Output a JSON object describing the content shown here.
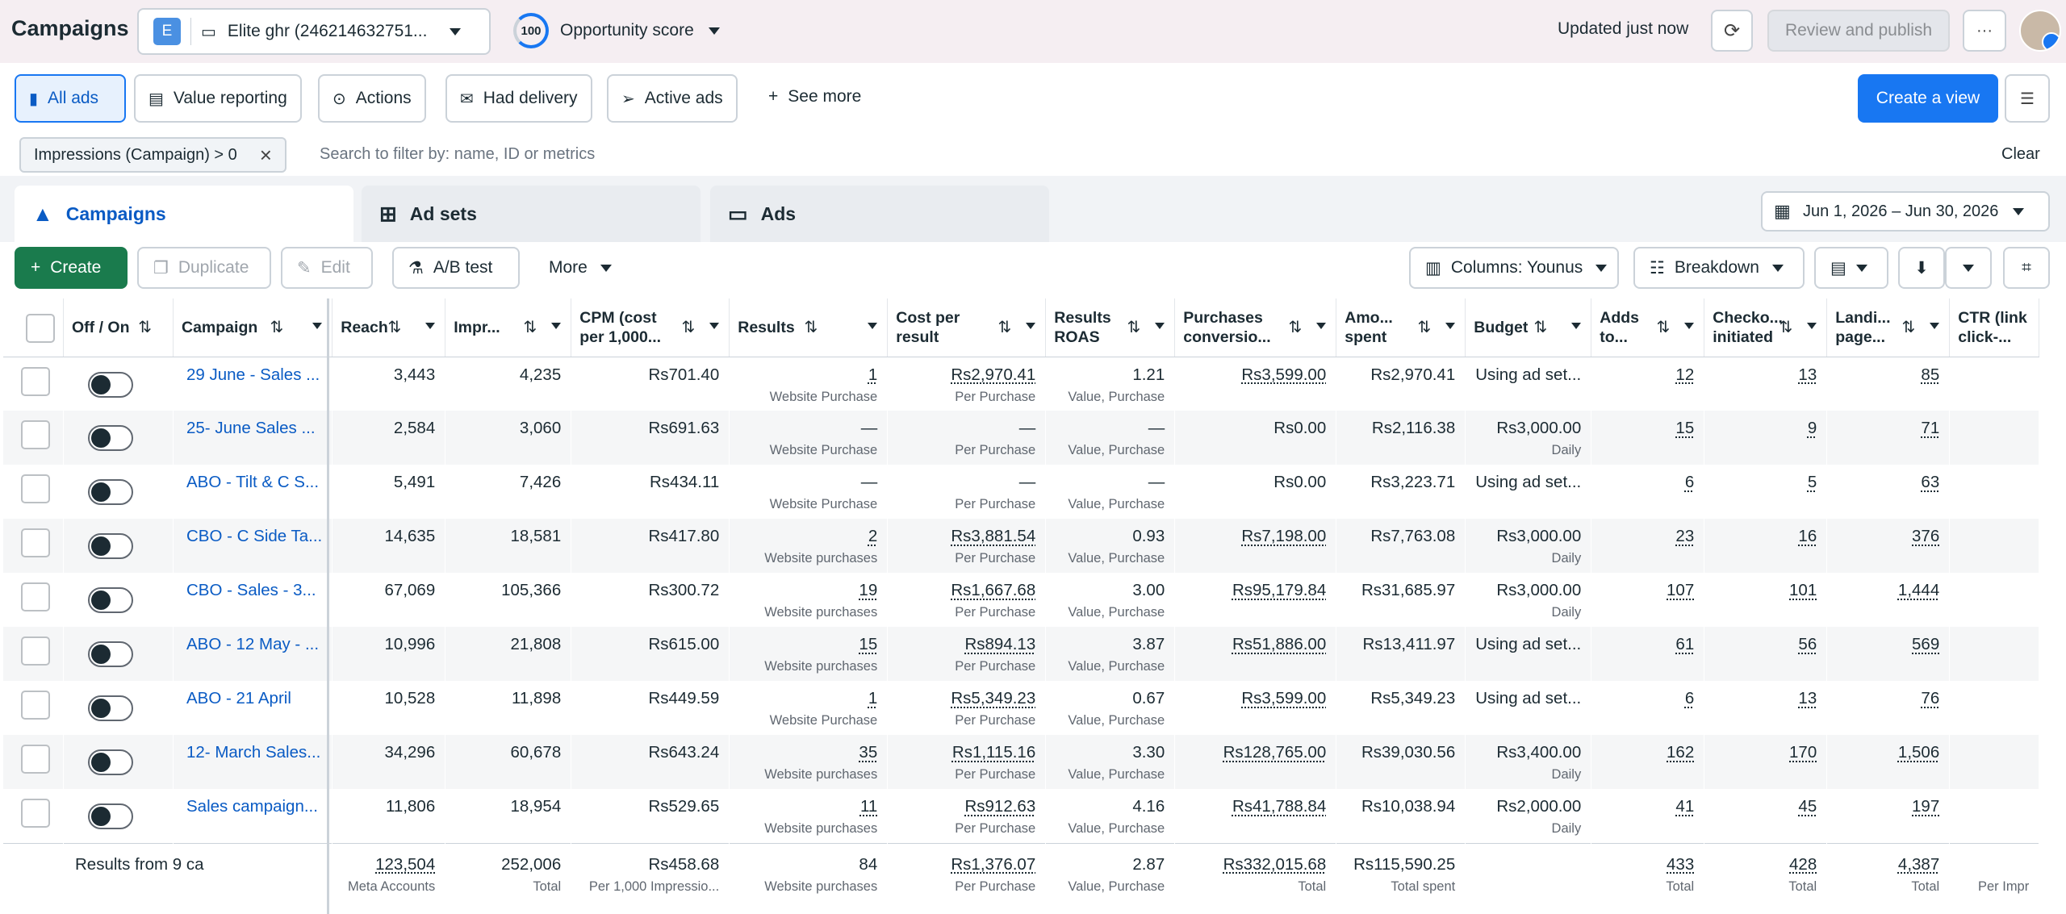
{
  "header": {
    "title": "Campaigns",
    "account_badge": "E",
    "account_name": "Elite ghr (246214632751...",
    "opportunity_score": "100",
    "opportunity_label": "Opportunity score",
    "updated": "Updated just now",
    "review_publish": "Review and publish",
    "more": "···"
  },
  "views": {
    "items": [
      "All ads",
      "Value reporting",
      "Actions",
      "Had delivery",
      "Active ads"
    ],
    "see_more": "See more",
    "create_view": "Create a view"
  },
  "filter": {
    "chip": "Impressions (Campaign) > 0",
    "placeholder": "Search to filter by: name, ID or metrics",
    "clear": "Clear"
  },
  "tabs": [
    "Campaigns",
    "Ad sets",
    "Ads"
  ],
  "date_range": "Jun 1, 2026 – Jun 30, 2026",
  "toolbar": {
    "create": "Create",
    "duplicate": "Duplicate",
    "edit": "Edit",
    "ab_test": "A/B test",
    "more": "More",
    "columns": "Columns: Younus",
    "breakdown": "Breakdown"
  },
  "columns": [
    "Off / On",
    "Campaign",
    "Reach",
    "Impr...",
    "CPM (cost per 1,000...",
    "Results",
    "Cost per result",
    "Results ROAS",
    "Purchases conversio...",
    "Amo... spent",
    "Budget",
    "Adds to...",
    "Checko... initiated",
    "Landi... page...",
    "CTR (link click-..."
  ],
  "rows": [
    {
      "name": "29 June - Sales ...",
      "reach": "3,443",
      "impr": "4,235",
      "cpm": "Rs701.40",
      "results": "1",
      "results_sub": "Website Purchase",
      "cpr": "Rs2,970.41",
      "cpr_sub": "Per Purchase",
      "roas": "1.21",
      "roas_sub": "Value, Purchase",
      "pcv": "Rs3,599.00",
      "spent": "Rs2,970.41",
      "budget": "Using ad set...",
      "budget_sub": "",
      "adds": "12",
      "checko": "13",
      "landing": "85"
    },
    {
      "name": "25- June Sales ...",
      "reach": "2,584",
      "impr": "3,060",
      "cpm": "Rs691.63",
      "results": "—",
      "results_sub": "Website Purchase",
      "cpr": "—",
      "cpr_sub": "Per Purchase",
      "roas": "—",
      "roas_sub": "Value, Purchase",
      "pcv": "Rs0.00",
      "spent": "Rs2,116.38",
      "budget": "Rs3,000.00",
      "budget_sub": "Daily",
      "adds": "15",
      "checko": "9",
      "landing": "71"
    },
    {
      "name": "ABO - Tilt & C S...",
      "reach": "5,491",
      "impr": "7,426",
      "cpm": "Rs434.11",
      "results": "—",
      "results_sub": "Website Purchase",
      "cpr": "—",
      "cpr_sub": "Per Purchase",
      "roas": "—",
      "roas_sub": "Value, Purchase",
      "pcv": "Rs0.00",
      "spent": "Rs3,223.71",
      "budget": "Using ad set...",
      "budget_sub": "",
      "adds": "6",
      "checko": "5",
      "landing": "63"
    },
    {
      "name": "CBO - C Side Ta...",
      "reach": "14,635",
      "impr": "18,581",
      "cpm": "Rs417.80",
      "results": "2",
      "results_sub": "Website purchases",
      "cpr": "Rs3,881.54",
      "cpr_sub": "Per Purchase",
      "roas": "0.93",
      "roas_sub": "Value, Purchase",
      "pcv": "Rs7,198.00",
      "spent": "Rs7,763.08",
      "budget": "Rs3,000.00",
      "budget_sub": "Daily",
      "adds": "23",
      "checko": "16",
      "landing": "376"
    },
    {
      "name": "CBO - Sales - 3...",
      "reach": "67,069",
      "impr": "105,366",
      "cpm": "Rs300.72",
      "results": "19",
      "results_sub": "Website purchases",
      "cpr": "Rs1,667.68",
      "cpr_sub": "Per Purchase",
      "roas": "3.00",
      "roas_sub": "Value, Purchase",
      "pcv": "Rs95,179.84",
      "spent": "Rs31,685.97",
      "budget": "Rs3,000.00",
      "budget_sub": "Daily",
      "adds": "107",
      "checko": "101",
      "landing": "1,444"
    },
    {
      "name": "ABO - 12 May - ...",
      "reach": "10,996",
      "impr": "21,808",
      "cpm": "Rs615.00",
      "results": "15",
      "results_sub": "Website purchases",
      "cpr": "Rs894.13",
      "cpr_sub": "Per Purchase",
      "roas": "3.87",
      "roas_sub": "Value, Purchase",
      "pcv": "Rs51,886.00",
      "spent": "Rs13,411.97",
      "budget": "Using ad set...",
      "budget_sub": "",
      "adds": "61",
      "checko": "56",
      "landing": "569"
    },
    {
      "name": "ABO - 21 April",
      "reach": "10,528",
      "impr": "11,898",
      "cpm": "Rs449.59",
      "results": "1",
      "results_sub": "Website Purchase",
      "cpr": "Rs5,349.23",
      "cpr_sub": "Per Purchase",
      "roas": "0.67",
      "roas_sub": "Value, Purchase",
      "pcv": "Rs3,599.00",
      "spent": "Rs5,349.23",
      "budget": "Using ad set...",
      "budget_sub": "",
      "adds": "6",
      "checko": "13",
      "landing": "76"
    },
    {
      "name": "12- March Sales...",
      "reach": "34,296",
      "impr": "60,678",
      "cpm": "Rs643.24",
      "results": "35",
      "results_sub": "Website purchases",
      "cpr": "Rs1,115.16",
      "cpr_sub": "Per Purchase",
      "roas": "3.30",
      "roas_sub": "Value, Purchase",
      "pcv": "Rs128,765.00",
      "spent": "Rs39,030.56",
      "budget": "Rs3,400.00",
      "budget_sub": "Daily",
      "adds": "162",
      "checko": "170",
      "landing": "1,506"
    },
    {
      "name": "Sales campaign...",
      "reach": "11,806",
      "impr": "18,954",
      "cpm": "Rs529.65",
      "results": "11",
      "results_sub": "Website purchases",
      "cpr": "Rs912.63",
      "cpr_sub": "Per Purchase",
      "roas": "4.16",
      "roas_sub": "Value, Purchase",
      "pcv": "Rs41,788.84",
      "spent": "Rs10,038.94",
      "budget": "Rs2,000.00",
      "budget_sub": "Daily",
      "adds": "41",
      "checko": "45",
      "landing": "197"
    }
  ],
  "totals": {
    "label": "Results from 9 ca",
    "reach": "123,504",
    "reach_sub": "Meta Accounts",
    "impr": "252,006",
    "impr_sub": "Total",
    "cpm": "Rs458.68",
    "cpm_sub": "Per 1,000 Impressio...",
    "results": "84",
    "results_sub": "Website purchases",
    "cpr": "Rs1,376.07",
    "cpr_sub": "Per Purchase",
    "roas": "2.87",
    "roas_sub": "Value, Purchase",
    "pcv": "Rs332,015.68",
    "pcv_sub": "Total",
    "spent": "Rs115,590.25",
    "spent_sub": "Total spent",
    "adds": "433",
    "adds_sub": "Total",
    "checko": "428",
    "checko_sub": "Total",
    "landing": "4,387",
    "landing_sub": "Total",
    "ctr_sub": "Per Impr"
  },
  "colors": {
    "accent": "#1877f2",
    "create_green": "#1a7b4d",
    "link": "#0a5bc4"
  }
}
